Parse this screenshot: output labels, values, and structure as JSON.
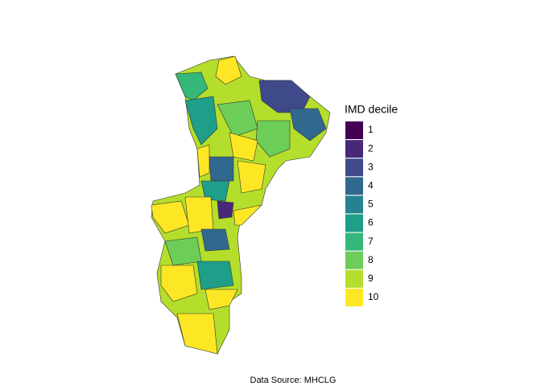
{
  "legend": {
    "title": "IMD decile",
    "items": [
      {
        "label": "1",
        "color": "#440154"
      },
      {
        "label": "2",
        "color": "#482878"
      },
      {
        "label": "3",
        "color": "#3E4A89"
      },
      {
        "label": "4",
        "color": "#31688E"
      },
      {
        "label": "5",
        "color": "#26828E"
      },
      {
        "label": "6",
        "color": "#1F9E89"
      },
      {
        "label": "7",
        "color": "#35B779"
      },
      {
        "label": "8",
        "color": "#6DCD59"
      },
      {
        "label": "9",
        "color": "#B4DE2C"
      },
      {
        "label": "10",
        "color": "#FDE725"
      }
    ]
  },
  "caption": "Data Source: MHCLG"
}
